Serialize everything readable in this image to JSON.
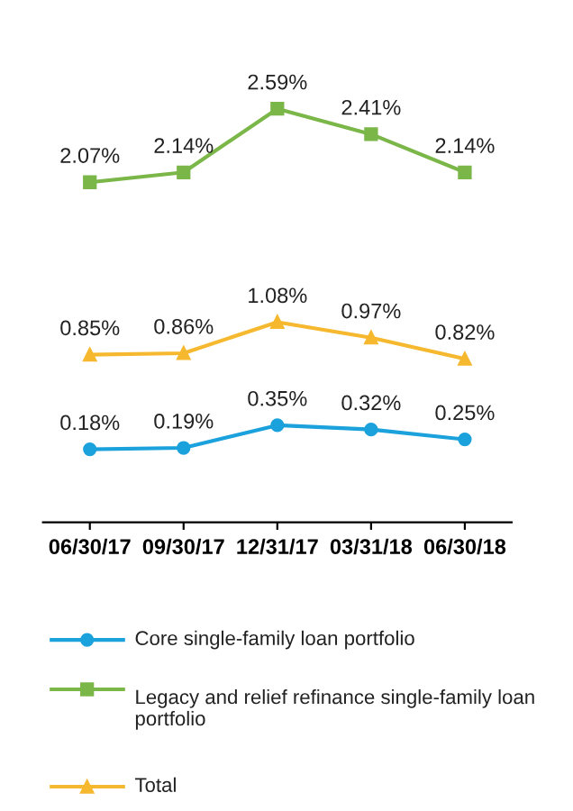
{
  "chart_data": {
    "type": "line",
    "categories": [
      "06/30/17",
      "09/30/17",
      "12/31/17",
      "03/31/18",
      "06/30/18"
    ],
    "series": [
      {
        "name": "Core single-family loan portfolio",
        "color": "#1ba1dc",
        "marker": "circle",
        "values": [
          0.18,
          0.19,
          0.35,
          0.32,
          0.25
        ],
        "value_labels": [
          "0.18%",
          "0.19%",
          "0.35%",
          "0.32%",
          "0.25%"
        ]
      },
      {
        "name": "Legacy and relief refinance single-family loan portfolio",
        "color": "#7ab648",
        "marker": "square",
        "values": [
          2.07,
          2.14,
          2.59,
          2.41,
          2.14
        ],
        "value_labels": [
          "2.07%",
          "2.14%",
          "2.59%",
          "2.41%",
          "2.14%"
        ]
      },
      {
        "name": "Total",
        "color": "#f5b82e",
        "marker": "triangle",
        "values": [
          0.85,
          0.86,
          1.08,
          0.97,
          0.82
        ],
        "value_labels": [
          "0.85%",
          "0.86%",
          "1.08%",
          "0.97%",
          "0.82%"
        ]
      }
    ],
    "legend": "bottom",
    "grid": false
  }
}
